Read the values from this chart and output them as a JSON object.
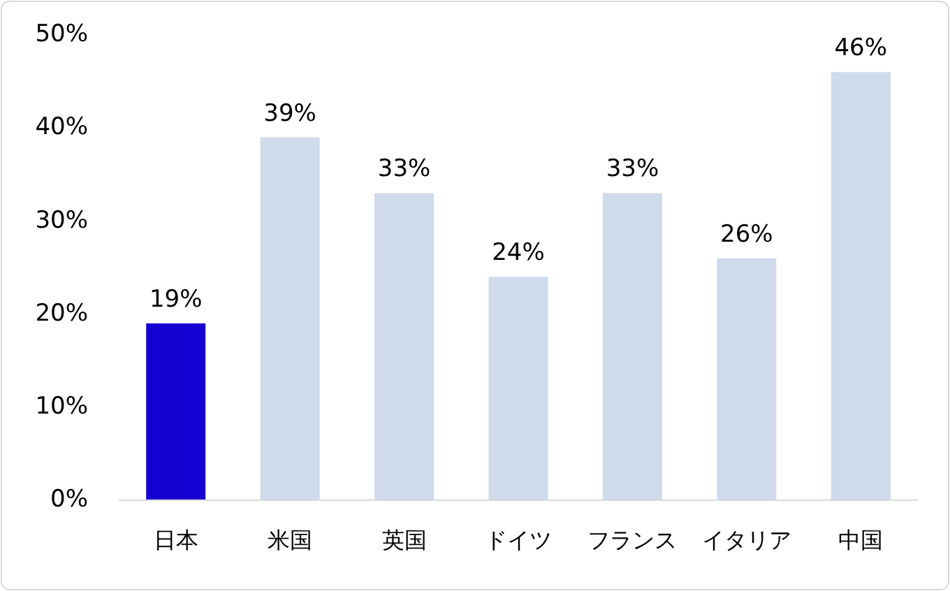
{
  "chart_data": {
    "type": "bar",
    "categories": [
      "日本",
      "米国",
      "英国",
      "ドイツ",
      "フランス",
      "イタリア",
      "中国"
    ],
    "values": [
      19,
      39,
      33,
      24,
      33,
      26,
      46
    ],
    "colors": [
      "#1400d0",
      "#cfdaeb",
      "#cfdaeb",
      "#cfdaeb",
      "#cfdaeb",
      "#cfdaeb",
      "#cfdaeb"
    ],
    "value_labels": [
      "19%",
      "39%",
      "33%",
      "24%",
      "33%",
      "26%",
      "46%"
    ],
    "ylim": [
      0,
      50
    ],
    "yticks": [
      {
        "value": 0,
        "label": "0%"
      },
      {
        "value": 10,
        "label": "10%"
      },
      {
        "value": 20,
        "label": "20%"
      },
      {
        "value": 30,
        "label": "30%"
      },
      {
        "value": 40,
        "label": "40%"
      },
      {
        "value": 50,
        "label": "50%"
      }
    ],
    "grid": false
  }
}
